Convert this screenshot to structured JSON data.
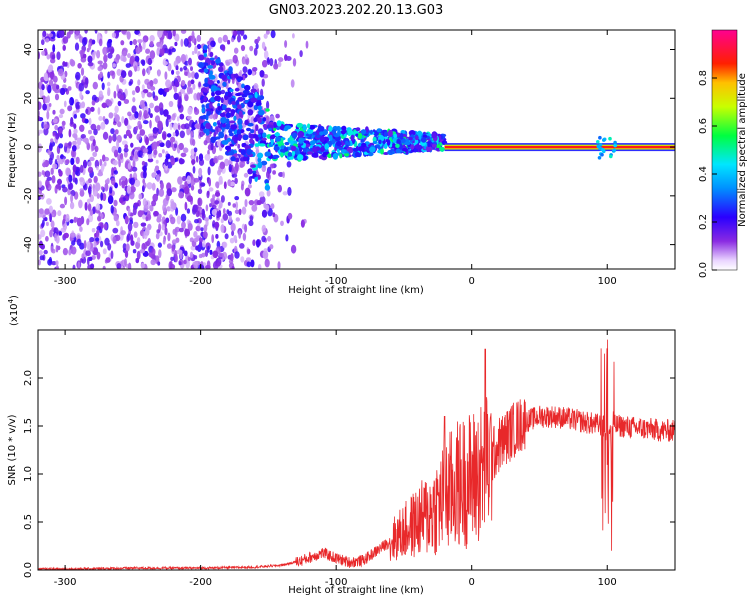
{
  "title": "GN03.2023.202.20.13.G03",
  "colors": {
    "snr_line": "#e8282a",
    "spectrogram_background": "#ffffff",
    "tracked_band": "#ff1a1a",
    "band_edge": "#2d2dff"
  },
  "chart_data": [
    {
      "type": "heatmap",
      "title": "",
      "xlabel": "Height of straight line (km)",
      "ylabel": "Frequency (Hz)",
      "xlim": [
        -320,
        150
      ],
      "ylim": [
        -50,
        48
      ],
      "x_ticks": [
        -300,
        -200,
        -100,
        0,
        100
      ],
      "y_ticks": [
        -40,
        -20,
        0,
        20,
        40
      ],
      "grid": false,
      "colorbar": {
        "label": "Normalized spectral amplitude",
        "range": [
          0.0,
          1.0
        ],
        "ticks": [
          "0.0",
          "0.2",
          "0.4",
          "0.6",
          "0.8"
        ],
        "colormap": "rainbow (white → violet → blue → cyan → green → yellow → red → magenta)"
      },
      "features": {
        "noise_region_km": [
          -320,
          -140
        ],
        "diffuse_signal_km": [
          -200,
          -20
        ],
        "coherent_tone_km": [
          -20,
          150
        ],
        "coherent_tone_frequency_hz": 0,
        "coherent_tone_amplitude": 0.9
      }
    },
    {
      "type": "line",
      "title": "",
      "xlabel": "Height of straight line (km)",
      "ylabel": "SNR (10 * v/v)",
      "y_multiplier": "(x10^4)",
      "y_multiplier_base": "(x10",
      "y_multiplier_exp": "4",
      "y_multiplier_close": ")",
      "xlim": [
        -320,
        150
      ],
      "ylim": [
        0,
        2.5
      ],
      "x_ticks": [
        -300,
        -200,
        -100,
        0,
        100
      ],
      "y_ticks": [
        "0.0",
        "0.5",
        "1.0",
        "1.5",
        "2.0"
      ],
      "grid": false,
      "series": [
        {
          "x": [
            -320,
            -300,
            -250,
            -200,
            -160,
            -140,
            -125,
            -110,
            -100,
            -90,
            -80,
            -70,
            -60,
            -50,
            -40,
            -30,
            -20,
            -10,
            0,
            10,
            20,
            30,
            40,
            50,
            60,
            70,
            80,
            90,
            100,
            110,
            120,
            130,
            140,
            150
          ],
          "values": [
            0.01,
            0.01,
            0.02,
            0.02,
            0.03,
            0.05,
            0.1,
            0.18,
            0.12,
            0.08,
            0.1,
            0.2,
            0.3,
            0.4,
            0.5,
            0.6,
            0.75,
            0.9,
            0.95,
            1.05,
            1.3,
            1.45,
            1.55,
            1.6,
            1.6,
            1.58,
            1.55,
            1.52,
            1.5,
            1.5,
            1.48,
            1.47,
            1.45,
            1.45
          ],
          "spikes": [
            {
              "x": -20,
              "value": 1.6
            },
            {
              "x": 10,
              "value": 2.3
            },
            {
              "x": 100,
              "value": 2.4
            },
            {
              "x": 103,
              "value": 0.2
            }
          ]
        }
      ]
    }
  ]
}
